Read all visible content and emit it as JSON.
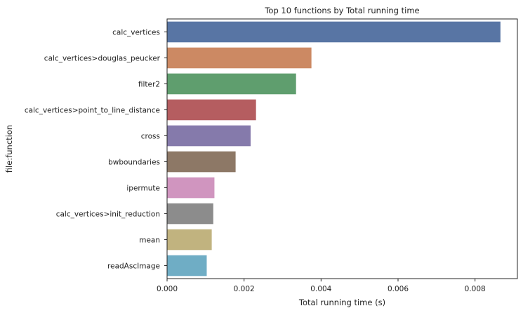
{
  "chart_data": {
    "type": "bar",
    "orientation": "horizontal",
    "title": "Top 10 functions by Total running time",
    "xlabel": "Total running time (s)",
    "ylabel": "file:function",
    "categories": [
      "calc_vertices",
      "calc_vertices>douglas_peucker",
      "filter2",
      "calc_vertices>point_to_line_distance",
      "cross",
      "bwboundaries",
      "ipermute",
      "calc_vertices>init_reduction",
      "mean",
      "readAscImage"
    ],
    "values": [
      0.00866,
      0.00375,
      0.00335,
      0.00231,
      0.00217,
      0.00178,
      0.00123,
      0.0012,
      0.00116,
      0.00103
    ],
    "xlim": [
      0,
      0.0091
    ],
    "xticks": [
      0,
      0.002,
      0.004,
      0.006,
      0.008
    ],
    "xtick_labels": [
      "0.000",
      "0.002",
      "0.004",
      "0.006",
      "0.008"
    ],
    "colors": [
      "#5875a4",
      "#cc8963",
      "#5f9e6e",
      "#b55d60",
      "#857aab",
      "#8d7866",
      "#d095bf",
      "#8c8c8c",
      "#c1b37f",
      "#6fadc5"
    ],
    "grid": false
  }
}
